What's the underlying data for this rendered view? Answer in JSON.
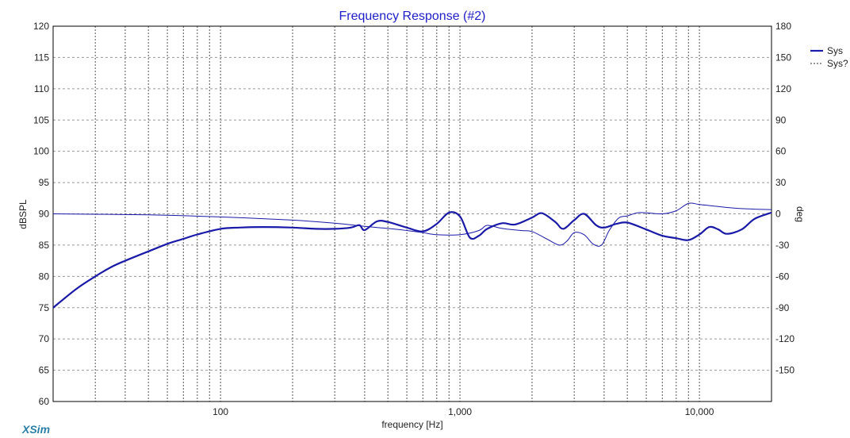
{
  "chart_data": {
    "type": "line",
    "title": "Frequency Response (#2)",
    "xlabel": "frequency [Hz]",
    "ylabel": "dBSPL",
    "y2label": "deg",
    "x_scale": "log",
    "xlim": [
      20,
      20000
    ],
    "ylim": [
      60,
      120
    ],
    "y2lim": [
      -180,
      180
    ],
    "x_ticks": [
      100,
      1000,
      10000
    ],
    "x_tick_labels": [
      "100",
      "1,000",
      "10,000"
    ],
    "y_ticks": [
      60,
      65,
      70,
      75,
      80,
      85,
      90,
      95,
      100,
      105,
      110,
      115,
      120
    ],
    "y2_ticks": [
      -150,
      -120,
      -90,
      -60,
      -30,
      0,
      30,
      60,
      90,
      120,
      150,
      180
    ],
    "grid": true,
    "legend_position": "right",
    "series": [
      {
        "name": "Sys",
        "axis": "left",
        "style": "solid-thick",
        "x": [
          20,
          25,
          30,
          35,
          40,
          50,
          60,
          70,
          80,
          100,
          120,
          150,
          200,
          250,
          300,
          350,
          380,
          400,
          450,
          500,
          600,
          700,
          800,
          900,
          1000,
          1100,
          1200,
          1300,
          1500,
          1700,
          2000,
          2200,
          2500,
          2700,
          3000,
          3300,
          3700,
          4000,
          4500,
          5000,
          6000,
          7000,
          8000,
          9000,
          10000,
          11000,
          12000,
          13000,
          15000,
          17000,
          20000
        ],
        "values": [
          75,
          78,
          80,
          81.5,
          82.5,
          84,
          85.2,
          86,
          86.7,
          87.6,
          87.8,
          87.9,
          87.8,
          87.6,
          87.6,
          87.8,
          88.2,
          87.4,
          88.8,
          88.7,
          87.8,
          87.2,
          88.4,
          90.2,
          89.6,
          86.2,
          86.5,
          87.6,
          88.5,
          88.3,
          89.4,
          90.1,
          88.7,
          87.6,
          89.0,
          90.0,
          88.2,
          87.8,
          88.4,
          88.6,
          87.5,
          86.5,
          86.1,
          85.8,
          86.7,
          87.9,
          87.5,
          86.8,
          87.5,
          89.2,
          90.2
        ]
      },
      {
        "name": "Sys?",
        "axis": "right",
        "style": "thin",
        "x": [
          20,
          50,
          100,
          200,
          300,
          400,
          500,
          600,
          700,
          800,
          1000,
          1200,
          1300,
          1500,
          1800,
          2000,
          2300,
          2600,
          2800,
          3000,
          3300,
          3600,
          3900,
          4200,
          4600,
          5000,
          5500,
          6000,
          7000,
          8000,
          9000,
          10000,
          12000,
          15000,
          20000
        ],
        "values": [
          0,
          -1,
          -3,
          -6,
          -9,
          -12,
          -14,
          -16,
          -18,
          -20,
          -20,
          -16,
          -11,
          -14,
          -16,
          -17,
          -24,
          -30,
          -26,
          -18,
          -20,
          -29,
          -30,
          -16,
          -4,
          -2,
          1,
          1,
          0,
          3,
          10,
          9,
          7,
          5,
          4
        ]
      }
    ],
    "legend": [
      "Sys",
      "Sys?"
    ],
    "watermark": "XSim"
  },
  "colors": {
    "line": "#1a1aa8",
    "title": "#2020c8",
    "grid": "#9a9a9a",
    "brand": "#2a7fa8"
  }
}
